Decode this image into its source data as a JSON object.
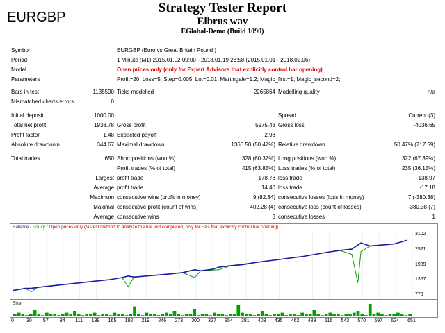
{
  "symbol_big": "EURGBP",
  "header": {
    "title": "Strategy Tester Report",
    "expert": "Elbrus way",
    "server": "EGlobal-Demo (Build 1090)"
  },
  "rows": {
    "symbol_label": "Symbol",
    "symbol_value": "EURGBP (Euro vs Great Britain Pound )",
    "period_label": "Period",
    "period_value": "1 Minute (M1) 2015.01.02 09:00 - 2018.01.19 23:58 (2015.01.01 - 2018.02.06)",
    "model_label": "Model",
    "model_value": "Open prices only (only for Expert Advisors that explicitly control bar opening)",
    "params_label": "Parameters",
    "params_value": "Profit=20; Loss=5; Step=0.005; Lot=0.01; Martingale=1.2; Magic_first=1; Magic_second=2;",
    "bars_label": "Bars in test",
    "bars_value": "1135590",
    "ticks_label": "Ticks modelled",
    "ticks_value": "2265864",
    "quality_label": "Modelling quality",
    "quality_value": "n/a",
    "mismatch_label": "Mismatched charts errors",
    "mismatch_value": "0",
    "deposit_label": "Initial deposit",
    "deposit_value": "1000.00",
    "spread_label": "Spread",
    "spread_value": "Current (3)",
    "netprofit_label": "Total net profit",
    "netprofit_value": "1938.78",
    "grossprofit_label": "Gross profit",
    "grossprofit_value": "5975.43",
    "grossloss_label": "Gross loss",
    "grossloss_value": "-4036.65",
    "pf_label": "Profit factor",
    "pf_value": "1.48",
    "ep_label": "Expected payoff",
    "ep_value": "2.98",
    "absdd_label": "Absolute drawdown",
    "absdd_value": "344.67",
    "maxdd_label": "Maximal drawdown",
    "maxdd_value": "1360.50 (50.47%)",
    "reldd_label": "Relative drawdown",
    "reldd_value": "50.47% (717.59)",
    "trades_label": "Total trades",
    "trades_value": "650",
    "short_label": "Short positions (won %)",
    "short_value": "328 (60.37%)",
    "long_label": "Long positions (won %)",
    "long_value": "322 (67.39%)",
    "pt_label": "Profit trades (% of total)",
    "pt_value": "415 (63.85%)",
    "lt_label": "Loss trades (% of total)",
    "lt_value": "235 (36.15%)",
    "largest_label": "Largest",
    "lpt_label": "profit trade",
    "lpt_value": "178.78",
    "llt_label": "loss trade",
    "llt_value": "-138.97",
    "average_label": "Average",
    "apt_label": "profit trade",
    "apt_value": "14.40",
    "alt_label": "loss trade",
    "alt_value": "-17.18",
    "maximum_label": "Maximum",
    "mcw_label": "consecutive wins (profit in money)",
    "mcw_value": "9 (82.34)",
    "mcl_label": "consecutive losses (loss in money)",
    "mcl_value": "7 (-380.38)",
    "maximal_label": "Maximal",
    "mcp_label": "consecutive profit (count of wins)",
    "mcp_value": "402.28 (4)",
    "mclc_label": "consecutive loss (count of losses)",
    "mclc_value": "-380.38 (7)",
    "average2_label": "Average",
    "acw_label": "consecutive wins",
    "acw_value": "3",
    "acl_label": "consecutive losses",
    "acl_value": "1"
  },
  "chart_legend": {
    "balance": "Balance",
    "sep1": " / ",
    "equity": "Equity",
    "sep2": " / ",
    "note": "Open prices only (fastest method to analyze the bar just completed, only for EAs that explicitly control bar opening)"
  },
  "size_label": "Size",
  "colors": {
    "balance": "#1a1aa0",
    "equity": "#00a000",
    "size": "#00a000",
    "model_red": "#e00000"
  },
  "chart_data": {
    "type": "line",
    "y_ticks": [
      "3102",
      "2521",
      "1939",
      "1357",
      "775"
    ],
    "x_ticks": [
      "0",
      "30",
      "57",
      "84",
      "111",
      "138",
      "165",
      "192",
      "219",
      "246",
      "273",
      "300",
      "327",
      "354",
      "381",
      "408",
      "435",
      "462",
      "489",
      "516",
      "543",
      "570",
      "597",
      "624",
      "651"
    ],
    "ylim": [
      775,
      3300
    ],
    "xlim": [
      0,
      660
    ],
    "series": [
      {
        "name": "Balance",
        "points": [
          [
            0,
            1000
          ],
          [
            10,
            1040
          ],
          [
            20,
            1080
          ],
          [
            30,
            1080
          ],
          [
            40,
            1120
          ],
          [
            60,
            1170
          ],
          [
            80,
            1220
          ],
          [
            100,
            1270
          ],
          [
            120,
            1320
          ],
          [
            140,
            1370
          ],
          [
            160,
            1420
          ],
          [
            180,
            1500
          ],
          [
            190,
            1560
          ],
          [
            200,
            1520
          ],
          [
            220,
            1560
          ],
          [
            240,
            1600
          ],
          [
            260,
            1640
          ],
          [
            280,
            1690
          ],
          [
            300,
            1800
          ],
          [
            310,
            1760
          ],
          [
            330,
            1820
          ],
          [
            340,
            1900
          ],
          [
            360,
            1960
          ],
          [
            380,
            2000
          ],
          [
            400,
            2080
          ],
          [
            420,
            2140
          ],
          [
            440,
            2200
          ],
          [
            460,
            2260
          ],
          [
            480,
            2320
          ],
          [
            500,
            2400
          ],
          [
            520,
            2480
          ],
          [
            540,
            2550
          ],
          [
            560,
            2600
          ],
          [
            575,
            2840
          ],
          [
            590,
            2720
          ],
          [
            610,
            2760
          ],
          [
            630,
            2800
          ],
          [
            651,
            2940
          ]
        ]
      },
      {
        "name": "Equity",
        "points": [
          [
            0,
            1000
          ],
          [
            20,
            1080
          ],
          [
            30,
            950
          ],
          [
            40,
            1120
          ],
          [
            80,
            1220
          ],
          [
            120,
            1320
          ],
          [
            160,
            1420
          ],
          [
            180,
            1500
          ],
          [
            190,
            1150
          ],
          [
            200,
            1520
          ],
          [
            240,
            1600
          ],
          [
            280,
            1690
          ],
          [
            300,
            1500
          ],
          [
            310,
            1760
          ],
          [
            340,
            1800
          ],
          [
            360,
            1960
          ],
          [
            400,
            2080
          ],
          [
            440,
            2200
          ],
          [
            480,
            2320
          ],
          [
            520,
            2480
          ],
          [
            540,
            2550
          ],
          [
            560,
            2400
          ],
          [
            570,
            1300
          ],
          [
            575,
            2500
          ],
          [
            590,
            2720
          ],
          [
            630,
            2800
          ],
          [
            651,
            2940
          ]
        ]
      }
    ],
    "size_values": [
      2,
      3,
      2,
      1,
      2,
      5,
      2,
      1,
      3,
      2,
      2,
      1,
      2,
      3,
      2,
      4,
      2,
      1,
      2,
      2,
      3,
      1,
      2,
      2,
      1,
      3,
      2,
      2,
      1,
      2,
      8,
      2,
      1,
      3,
      2,
      2,
      1,
      2,
      3,
      2,
      4,
      2,
      1,
      2,
      2,
      6,
      1,
      2,
      2,
      1,
      3,
      2,
      2,
      1,
      2,
      2,
      9,
      3,
      2,
      2,
      1,
      2,
      4,
      2,
      1,
      2,
      2,
      3,
      1,
      2,
      2,
      1,
      3,
      2,
      2,
      5,
      2,
      1,
      2,
      3,
      2,
      2,
      1,
      2,
      2,
      3,
      4,
      2,
      1,
      10,
      2,
      3,
      2,
      1,
      2,
      2,
      3,
      2,
      1,
      2
    ]
  }
}
